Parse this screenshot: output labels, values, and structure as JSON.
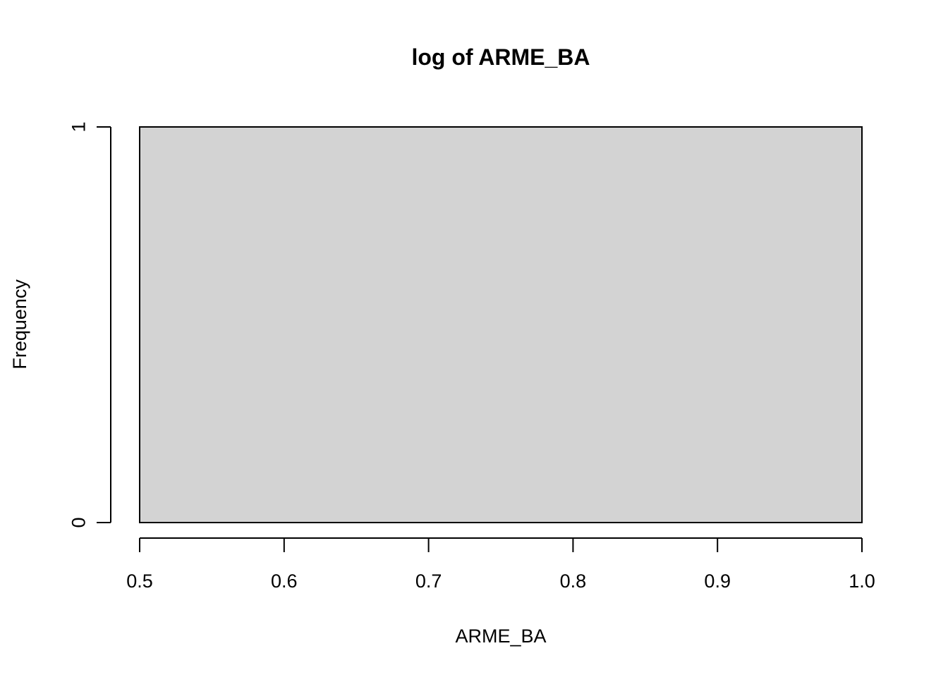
{
  "chart_data": {
    "type": "bar",
    "title": "log of ARME_BA",
    "xlabel": "ARME_BA",
    "ylabel": "Frequency",
    "bins": [
      {
        "x0": 0.5,
        "x1": 1.0,
        "count": 1
      }
    ],
    "xlim": [
      0.5,
      1.0
    ],
    "ylim": [
      0,
      1
    ],
    "x_ticks": [
      0.5,
      0.6,
      0.7,
      0.8,
      0.9,
      1.0
    ],
    "x_tick_labels": [
      "0.5",
      "0.6",
      "0.7",
      "0.8",
      "0.9",
      "1.0"
    ],
    "y_ticks": [
      0,
      1
    ],
    "y_tick_labels": [
      "0",
      "1"
    ],
    "bar_fill": "#d3d3d3",
    "bar_stroke": "#000000",
    "grid": false,
    "legend": "none"
  }
}
